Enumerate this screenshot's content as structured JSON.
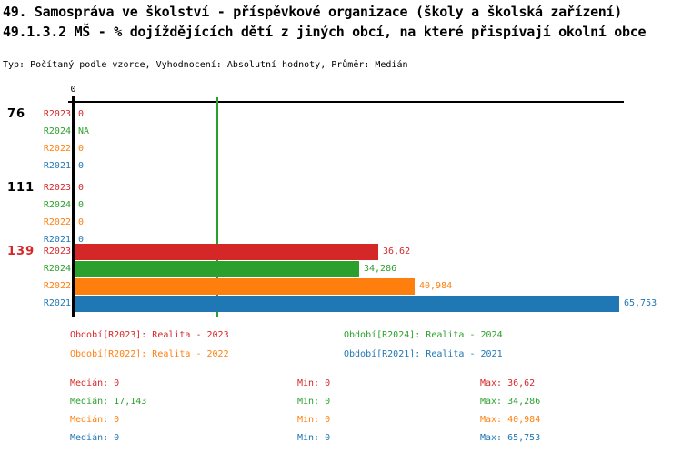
{
  "header": {
    "title_line1": "49. Samospráva ve školství - příspěvkové organizace (školy a školská zařízení)",
    "title_line2": "49.1.3.2 MŠ - % dojíždějících dětí z jiných obcí, na které přispívají okolní obce",
    "meta_line": "Typ: Počítaný podle vzorce, Vyhodnocení: Absolutní hodnoty, Průměr: Medián"
  },
  "colors": {
    "series": {
      "R2023": "#d62728",
      "R2024": "#2ca02c",
      "R2022": "#ff7f0e",
      "R2021": "#1f77b4"
    },
    "axis": "#000000",
    "median_line": "#2ca02c",
    "group_label_default": "#000000",
    "group_label_highlight": "#d62728"
  },
  "chart_data": {
    "type": "bar",
    "orientation": "horizontal",
    "title": "49.1.3.2 MŠ - % dojíždějících dětí z jiných obcí, na které přispívají okolní obce",
    "x_axis": {
      "min": 0,
      "approx_max": 66,
      "tick_labels": [
        "0"
      ]
    },
    "axis_tick_label": "0",
    "median_line_value": 17.143,
    "grid": false,
    "groups": [
      {
        "label": "76",
        "highlight": false,
        "rows": [
          {
            "series": "R2023",
            "value": 0,
            "display": "0"
          },
          {
            "series": "R2024",
            "value": null,
            "display": "NA"
          },
          {
            "series": "R2022",
            "value": 0,
            "display": "0"
          },
          {
            "series": "R2021",
            "value": 0,
            "display": "0"
          }
        ]
      },
      {
        "label": "111",
        "highlight": false,
        "rows": [
          {
            "series": "R2023",
            "value": 0,
            "display": "0"
          },
          {
            "series": "R2024",
            "value": 0,
            "display": "0"
          },
          {
            "series": "R2022",
            "value": 0,
            "display": "0"
          },
          {
            "series": "R2021",
            "value": 0,
            "display": "0"
          }
        ]
      },
      {
        "label": "139",
        "highlight": true,
        "rows": [
          {
            "series": "R2023",
            "value": 36.62,
            "display": "36,62"
          },
          {
            "series": "R2024",
            "value": 34.286,
            "display": "34,286"
          },
          {
            "series": "R2022",
            "value": 40.984,
            "display": "40,984"
          },
          {
            "series": "R2021",
            "value": 65.753,
            "display": "65,753"
          }
        ]
      }
    ]
  },
  "legend": [
    {
      "series": "R2023",
      "label": "Období[R2023]: Realita - 2023"
    },
    {
      "series": "R2024",
      "label": "Období[R2024]: Realita - 2024"
    },
    {
      "series": "R2022",
      "label": "Období[R2022]: Realita - 2022"
    },
    {
      "series": "R2021",
      "label": "Období[R2021]: Realita - 2021"
    }
  ],
  "stats": {
    "labels": {
      "median": "Medián",
      "min": "Min",
      "max": "Max"
    },
    "rows": [
      {
        "series": "R2023",
        "median": "0",
        "min": "0",
        "max": "36,62"
      },
      {
        "series": "R2024",
        "median": "17,143",
        "min": "0",
        "max": "34,286"
      },
      {
        "series": "R2022",
        "median": "0",
        "min": "0",
        "max": "40,984"
      },
      {
        "series": "R2021",
        "median": "0",
        "min": "0",
        "max": "65,753"
      }
    ]
  }
}
